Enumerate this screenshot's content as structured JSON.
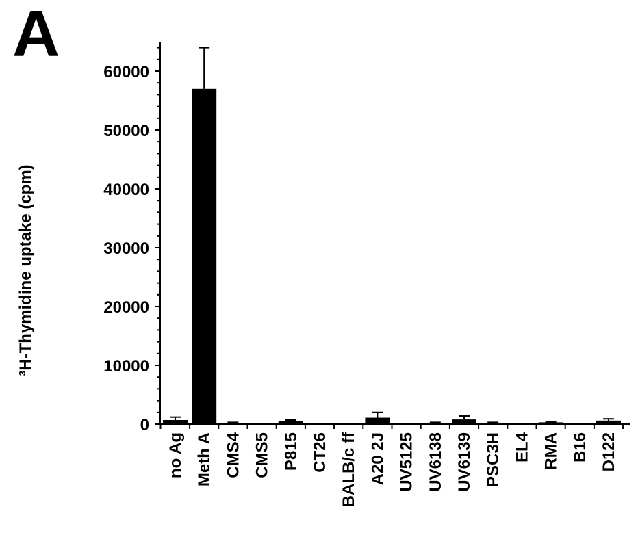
{
  "panel_label": "A",
  "chart_data": {
    "type": "bar",
    "title": "",
    "xlabel": "",
    "ylabel": "³H-Thymidine uptake (cpm)",
    "ylim": [
      0,
      65000
    ],
    "yticks": [
      0,
      10000,
      20000,
      30000,
      40000,
      50000,
      60000
    ],
    "grid": false,
    "bar_color": "#000000",
    "categories": [
      "no Ag",
      "Meth A",
      "CMS4",
      "CMS5",
      "P815",
      "CT26",
      "BALB/c ff",
      "A20 2J",
      "UV5125",
      "UV6138",
      "UV6139",
      "PSC3H",
      "EL4",
      "RMA",
      "B16",
      "D122"
    ],
    "values": [
      700,
      57000,
      200,
      100,
      500,
      100,
      100,
      1100,
      100,
      200,
      800,
      200,
      100,
      300,
      100,
      600
    ],
    "errors": [
      500,
      7000,
      100,
      0,
      200,
      0,
      0,
      900,
      0,
      100,
      600,
      100,
      0,
      100,
      0,
      300
    ]
  }
}
